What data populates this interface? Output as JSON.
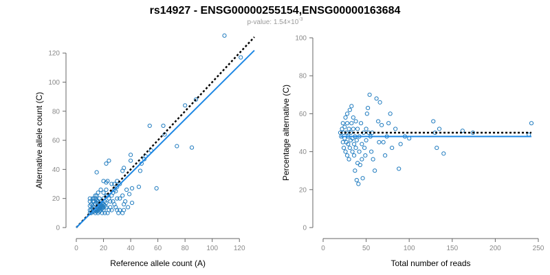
{
  "title": "rs14927 - ENSG00000255154,ENSG00000163684",
  "subtitle": {
    "prefix": "p-value: 1.54×10",
    "exponent": "-3"
  },
  "colors": {
    "points": "#1f7bbf",
    "fit_line": "#1e88e5",
    "reference_line": "#000000"
  },
  "chart_data": [
    {
      "type": "scatter",
      "title": "",
      "xlabel": "Reference allele count (A)",
      "ylabel": "Alternative allele count (C)",
      "xlim": [
        0,
        130
      ],
      "ylim": [
        0,
        130
      ],
      "xticks": [
        0,
        20,
        40,
        60,
        80,
        100,
        120
      ],
      "yticks": [
        0,
        20,
        40,
        60,
        80,
        100,
        120
      ],
      "reference_line": {
        "style": "dotted",
        "slope": 1,
        "intercept": 0,
        "x": [
          0,
          131
        ]
      },
      "fit_line": {
        "style": "solid",
        "slope": 0.93,
        "intercept": 0,
        "x": [
          0,
          131
        ]
      },
      "points": [
        [
          10,
          10
        ],
        [
          10,
          12
        ],
        [
          11,
          10
        ],
        [
          11,
          12
        ],
        [
          12,
          11
        ],
        [
          12,
          13
        ],
        [
          12,
          15
        ],
        [
          13,
          11
        ],
        [
          13,
          14
        ],
        [
          13,
          18
        ],
        [
          14,
          10
        ],
        [
          14,
          12
        ],
        [
          14,
          16
        ],
        [
          14,
          20
        ],
        [
          15,
          11
        ],
        [
          15,
          13
        ],
        [
          15,
          17
        ],
        [
          15,
          19
        ],
        [
          16,
          10
        ],
        [
          16,
          12
        ],
        [
          16,
          14
        ],
        [
          16,
          16
        ],
        [
          16,
          18
        ],
        [
          17,
          11
        ],
        [
          17,
          13
        ],
        [
          17,
          15
        ],
        [
          17,
          20
        ],
        [
          18,
          12
        ],
        [
          18,
          14
        ],
        [
          18,
          16
        ],
        [
          18,
          18
        ],
        [
          19,
          13
        ],
        [
          19,
          15
        ],
        [
          19,
          17
        ],
        [
          20,
          12
        ],
        [
          20,
          14
        ],
        [
          20,
          16
        ],
        [
          20,
          20
        ],
        [
          21,
          15
        ],
        [
          21,
          18
        ],
        [
          22,
          14
        ],
        [
          22,
          17
        ],
        [
          22,
          22
        ],
        [
          10,
          15
        ],
        [
          10,
          18
        ],
        [
          10,
          20
        ],
        [
          11,
          16
        ],
        [
          12,
          18
        ],
        [
          12,
          20
        ],
        [
          13,
          20
        ],
        [
          14,
          22
        ],
        [
          15,
          22
        ],
        [
          16,
          24
        ],
        [
          18,
          26
        ],
        [
          20,
          24
        ],
        [
          22,
          26
        ],
        [
          19,
          10
        ],
        [
          21,
          10
        ],
        [
          23,
          10
        ],
        [
          24,
          12
        ],
        [
          25,
          14
        ],
        [
          26,
          12
        ],
        [
          25,
          18
        ],
        [
          24,
          20
        ],
        [
          23,
          22
        ],
        [
          26,
          22
        ],
        [
          27,
          18
        ],
        [
          28,
          16
        ],
        [
          29,
          14
        ],
        [
          30,
          12
        ],
        [
          31,
          10
        ],
        [
          32,
          12
        ],
        [
          34,
          10
        ],
        [
          35,
          12
        ],
        [
          27,
          24
        ],
        [
          28,
          26
        ],
        [
          29,
          25
        ],
        [
          30,
          20
        ],
        [
          30,
          28
        ],
        [
          32,
          20
        ],
        [
          32,
          30
        ],
        [
          34,
          22
        ],
        [
          35,
          16
        ],
        [
          36,
          18
        ],
        [
          38,
          14
        ],
        [
          15,
          38
        ],
        [
          20,
          32
        ],
        [
          22,
          31
        ],
        [
          23,
          32
        ],
        [
          22,
          44
        ],
        [
          24,
          46
        ],
        [
          26,
          30
        ],
        [
          28,
          30
        ],
        [
          30,
          32
        ],
        [
          34,
          39
        ],
        [
          35,
          41
        ],
        [
          40,
          46
        ],
        [
          40,
          50
        ],
        [
          37,
          26
        ],
        [
          39,
          23
        ],
        [
          41,
          17
        ],
        [
          41,
          27
        ],
        [
          46,
          28
        ],
        [
          47,
          39
        ],
        [
          48,
          44
        ],
        [
          50,
          47
        ],
        [
          51,
          49
        ],
        [
          54,
          70
        ],
        [
          55,
          53
        ],
        [
          59,
          27
        ],
        [
          64,
          70
        ],
        [
          65,
          64
        ],
        [
          74,
          56
        ],
        [
          80,
          84
        ],
        [
          85,
          55
        ],
        [
          88,
          88
        ],
        [
          109,
          132
        ],
        [
          121,
          117
        ]
      ]
    },
    {
      "type": "scatter",
      "title": "",
      "xlabel": "Total number of reads",
      "ylabel": "Percentage alternative (C)",
      "xlim": [
        0,
        250
      ],
      "ylim": [
        0,
        100
      ],
      "xticks": [
        0,
        50,
        100,
        150,
        200,
        250
      ],
      "yticks": [
        0,
        20,
        40,
        60,
        80,
        100
      ],
      "reference_line": {
        "style": "dotted",
        "y": 50,
        "x": [
          20,
          242
        ]
      },
      "fit_line": {
        "style": "solid",
        "y": 48,
        "x": [
          20,
          242
        ]
      },
      "points": [
        [
          20,
          50
        ],
        [
          21,
          48
        ],
        [
          22,
          52
        ],
        [
          23,
          45
        ],
        [
          23,
          55
        ],
        [
          24,
          42
        ],
        [
          24,
          50
        ],
        [
          25,
          47
        ],
        [
          25,
          53
        ],
        [
          26,
          40
        ],
        [
          26,
          58
        ],
        [
          27,
          45
        ],
        [
          27,
          50
        ],
        [
          28,
          38
        ],
        [
          28,
          55
        ],
        [
          28,
          60
        ],
        [
          29,
          44
        ],
        [
          29,
          48
        ],
        [
          30,
          52
        ],
        [
          30,
          36
        ],
        [
          31,
          42
        ],
        [
          31,
          62
        ],
        [
          32,
          46
        ],
        [
          32,
          50
        ],
        [
          33,
          55
        ],
        [
          33,
          64
        ],
        [
          34,
          40
        ],
        [
          34,
          47
        ],
        [
          35,
          58
        ],
        [
          35,
          52
        ],
        [
          36,
          38
        ],
        [
          36,
          44
        ],
        [
          37,
          48
        ],
        [
          37,
          30
        ],
        [
          38,
          42
        ],
        [
          38,
          56
        ],
        [
          39,
          25
        ],
        [
          39,
          46
        ],
        [
          40,
          34
        ],
        [
          40,
          52
        ],
        [
          41,
          23
        ],
        [
          42,
          40
        ],
        [
          42,
          48
        ],
        [
          43,
          33
        ],
        [
          44,
          55
        ],
        [
          45,
          44
        ],
        [
          45,
          36
        ],
        [
          46,
          26
        ],
        [
          47,
          50
        ],
        [
          48,
          42
        ],
        [
          49,
          38
        ],
        [
          50,
          46
        ],
        [
          50,
          52
        ],
        [
          51,
          60
        ],
        [
          52,
          63
        ],
        [
          53,
          50
        ],
        [
          54,
          70
        ],
        [
          55,
          48
        ],
        [
          56,
          40
        ],
        [
          57,
          50
        ],
        [
          58,
          36
        ],
        [
          60,
          30
        ],
        [
          62,
          68
        ],
        [
          64,
          56
        ],
        [
          65,
          45
        ],
        [
          66,
          66
        ],
        [
          68,
          54
        ],
        [
          70,
          45
        ],
        [
          72,
          38
        ],
        [
          74,
          48
        ],
        [
          76,
          55
        ],
        [
          78,
          60
        ],
        [
          80,
          42
        ],
        [
          84,
          52
        ],
        [
          88,
          31
        ],
        [
          90,
          44
        ],
        [
          95,
          48
        ],
        [
          100,
          47
        ],
        [
          128,
          56
        ],
        [
          130,
          50
        ],
        [
          132,
          42
        ],
        [
          135,
          52
        ],
        [
          140,
          39
        ],
        [
          162,
          51
        ],
        [
          174,
          50
        ],
        [
          239,
          49
        ],
        [
          242,
          55
        ]
      ]
    }
  ]
}
